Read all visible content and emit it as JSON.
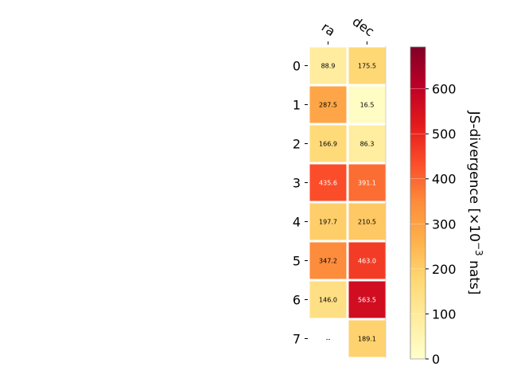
{
  "chart_data": {
    "type": "heatmap",
    "title": "",
    "columns": [
      "ra",
      "dec"
    ],
    "rows": [
      "0",
      "1",
      "2",
      "3",
      "4",
      "5",
      "6",
      "7"
    ],
    "values": [
      [
        88.9,
        175.5
      ],
      [
        287.5,
        16.5
      ],
      [
        166.9,
        86.3
      ],
      [
        435.6,
        391.1
      ],
      [
        197.7,
        210.5
      ],
      [
        347.2,
        463.0
      ],
      [
        146.0,
        563.5
      ],
      [
        null,
        189.1
      ]
    ],
    "cell_labels": [
      [
        "88.9",
        "175.5"
      ],
      [
        "287.5",
        "16.5"
      ],
      [
        "166.9",
        "86.3"
      ],
      [
        "435.6",
        "391.1"
      ],
      [
        "197.7",
        "210.5"
      ],
      [
        "347.2",
        "463.0"
      ],
      [
        "146.0",
        "563.5"
      ],
      [
        "--",
        "189.1"
      ]
    ],
    "colorbar": {
      "label_text": "JS-divergence [×10",
      "label_exponent": "−3",
      "label_unit": " nats]",
      "range": [
        0,
        693
      ],
      "ticks": [
        0,
        100,
        200,
        300,
        400,
        500,
        600
      ],
      "colormap": "YlOrRd"
    },
    "grid": false
  }
}
